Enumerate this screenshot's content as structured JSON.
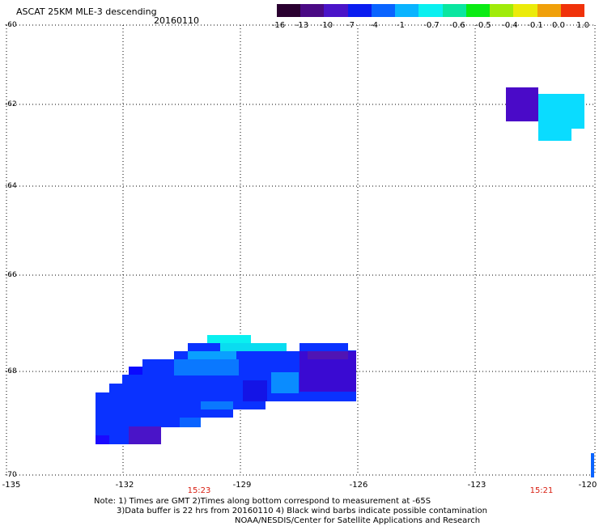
{
  "header": {
    "title": "ASCAT 25KM MLE-3 descending",
    "date": "20160110"
  },
  "colorbar": {
    "labels": [
      "-16",
      "-13",
      "-10",
      "-7",
      "-4",
      "-1",
      "-0.7",
      "-0.6",
      "-0.5",
      "-0.4",
      "-0.1",
      "0.0",
      "1.0"
    ],
    "colors": [
      "#2a0030",
      "#4a0a84",
      "#4a14c8",
      "#0a1cf0",
      "#0a64ff",
      "#0ab4ff",
      "#0af0f0",
      "#0ae6a0",
      "#0aeb14",
      "#a0eb0a",
      "#ebeb0a",
      "#f0a00a",
      "#f0320a"
    ]
  },
  "axes": {
    "lat_labels": [
      "-60",
      "-62",
      "-64",
      "-66",
      "-68",
      "-70"
    ],
    "lon_labels": [
      "-135",
      "-132",
      "-129",
      "-126",
      "-123",
      "-120"
    ],
    "time_labels": [
      "15:23",
      "15:21"
    ]
  },
  "notes": {
    "line1": "Note: 1) Times are GMT 2)Times along bottom correspond to measurement at -65S",
    "line2": "3)Data buffer is 22 hrs from 20160110 4) Black wind barbs indicate possible contamination",
    "line3": "NOAA/NESDIS/Center for Satellite Applications and Research"
  },
  "colors": {
    "time_label": "#d81d10",
    "gridline": "#000000"
  }
}
